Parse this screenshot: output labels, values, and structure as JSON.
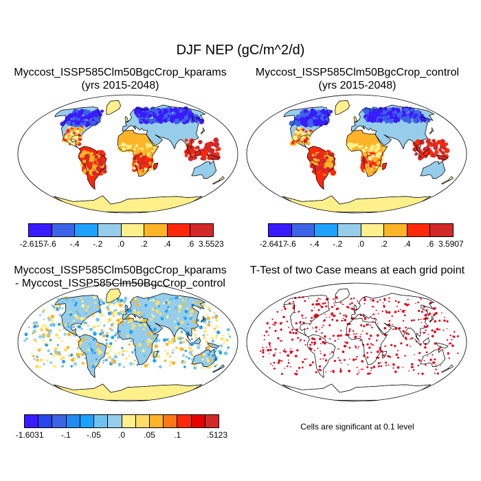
{
  "figure": {
    "title": "DJF NEP (gC/m^2/d)",
    "note": "Cells are significant at 0.1 level"
  },
  "panels": [
    {
      "title1": "Myccost_ISSP585Clm50BgcCrop_kparams",
      "title2": "(yrs 2015-2048)"
    },
    {
      "title1": "Myccost_ISSP585Clm50BgcCrop_control",
      "title2": "(yrs 2015-2048)"
    },
    {
      "title1": "Myccost_ISSP585Clm50BgcCrop_kparams",
      "title2": "- Myccost_ISSP585Clm50BgcCrop_control"
    },
    {
      "title1": "T-Test of two Case means at each grid point",
      "title2": ""
    }
  ],
  "colorbars": [
    {
      "colors": [
        "#3a1aff",
        "#3c64e6",
        "#1ea0ff",
        "#96cdeb",
        "#fff08c",
        "#ffb428",
        "#ff280a",
        "#d22828"
      ],
      "ticks": [
        "-2.6157",
        "-.6",
        "-.4",
        "-.2",
        ".0",
        ".2",
        ".4",
        ".6",
        "3.5523"
      ]
    },
    {
      "colors": [
        "#3a1aff",
        "#3c64e6",
        "#1ea0ff",
        "#96cdeb",
        "#fff08c",
        "#ffb428",
        "#ff280a",
        "#d22828"
      ],
      "ticks": [
        "-2.6417",
        "-.6",
        "-.4",
        "-.2",
        ".0",
        ".2",
        ".4",
        ".6",
        "3.5907"
      ]
    },
    {
      "colors": [
        "#3a1aff",
        "#2a44ee",
        "#3c64e6",
        "#1e8cf0",
        "#1ea0ff",
        "#6ec3ee",
        "#96cdeb",
        "#fff08c",
        "#ffdc64",
        "#ffb428",
        "#ff7814",
        "#ff280a",
        "#e60000",
        "#d22828"
      ],
      "ticks": [
        "-1.6031",
        "-.1",
        "-.05",
        ".0",
        ".05",
        ".1",
        ".5123"
      ],
      "tick_index": [
        0,
        3,
        5,
        7,
        9,
        11,
        14
      ]
    }
  ],
  "colors": {
    "ocean": "#ffffff",
    "coast": "#000000",
    "significant": "#e8001c",
    "antarctica": "#fff08c"
  }
}
